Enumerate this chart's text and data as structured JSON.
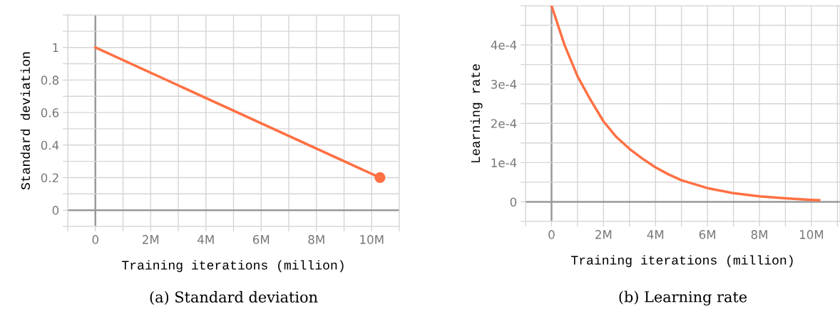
{
  "chart_data": [
    {
      "type": "line",
      "xlabel": "Training iterations (million)",
      "ylabel": "Standard deviation",
      "annotations": [
        "(a) Standard deviation"
      ],
      "series": [
        {
          "color": "#ff7043",
          "x": [
            0,
            10.3
          ],
          "values": [
            1.0,
            0.2
          ]
        },
        {
          "type": "scatter",
          "marker": "circle",
          "color": "#ff7043",
          "x": [
            10.3
          ],
          "values": [
            0.2
          ]
        }
      ],
      "xlim": [
        -1,
        11
      ],
      "xticks": [
        {
          "value": -1,
          "label": null
        },
        0,
        {
          "value": 1,
          "label": null
        },
        {
          "value": 2,
          "label": "2M"
        },
        {
          "value": 3,
          "label": null
        },
        {
          "value": 4,
          "label": "4M"
        },
        {
          "value": 5,
          "label": null
        },
        {
          "value": 6,
          "label": "6M"
        },
        {
          "value": 7,
          "label": null
        },
        {
          "value": 8,
          "label": "8M"
        },
        {
          "value": 9,
          "label": null
        },
        {
          "value": 10,
          "label": "10M"
        },
        {
          "value": 11,
          "label": null
        }
      ],
      "ylim": [
        -0.1,
        1.2
      ],
      "yticks": [
        {
          "value": -0.1,
          "label": null
        },
        0,
        {
          "value": 0.1,
          "label": null
        },
        0.2,
        {
          "value": 0.3,
          "label": null
        },
        0.4,
        {
          "value": 0.5,
          "label": null
        },
        0.6,
        {
          "value": 0.7,
          "label": null
        },
        0.8,
        {
          "value": 0.9,
          "label": null
        },
        1,
        {
          "value": 1.1,
          "label": null
        },
        {
          "value": 1.2,
          "label": null
        }
      ],
      "grid": true
    },
    {
      "type": "line",
      "xlabel": "Training iterations (million)",
      "ylabel": "Learning rate",
      "annotations": [
        "(b) Learning rate"
      ],
      "series": [
        {
          "color": "#ff7043",
          "x": [
            0,
            0.25,
            0.5,
            0.75,
            1,
            1.5,
            2,
            2.5,
            3,
            3.5,
            4,
            4.5,
            5,
            6,
            7,
            8,
            9,
            10,
            10.3
          ],
          "values": [
            0.0005,
            0.00045,
            0.0004,
            0.00036,
            0.00032,
            0.00026,
            0.000205,
            0.000165,
            0.000135,
            0.00011,
            8.8e-05,
            7e-05,
            5.5e-05,
            3.5e-05,
            2.2e-05,
            1.4e-05,
            9e-06,
            5e-06,
            4e-06
          ]
        }
      ],
      "xlim": [
        -1,
        11.1
      ],
      "xticks": [
        {
          "value": -1,
          "label": null
        },
        0,
        {
          "value": 1,
          "label": null
        },
        {
          "value": 2,
          "label": "2M"
        },
        {
          "value": 3,
          "label": null
        },
        {
          "value": 4,
          "label": "4M"
        },
        {
          "value": 5,
          "label": null
        },
        {
          "value": 6,
          "label": "6M"
        },
        {
          "value": 7,
          "label": null
        },
        {
          "value": 8,
          "label": "8M"
        },
        {
          "value": 9,
          "label": null
        },
        {
          "value": 10,
          "label": "10M"
        },
        {
          "value": 11,
          "label": null
        }
      ],
      "ylim": [
        -5e-05,
        0.0005
      ],
      "yticks": [
        {
          "value": -5e-05,
          "label": null
        },
        0,
        {
          "value": 5e-05,
          "label": null
        },
        {
          "value": 0.0001,
          "label": "1e-4"
        },
        {
          "value": 0.00015,
          "label": null
        },
        {
          "value": 0.0002,
          "label": "2e-4"
        },
        {
          "value": 0.00025,
          "label": null
        },
        {
          "value": 0.0003,
          "label": "3e-4"
        },
        {
          "value": 0.00035,
          "label": null
        },
        {
          "value": 0.0004,
          "label": "4e-4"
        },
        {
          "value": 0.00045,
          "label": null
        },
        {
          "value": 0.0005,
          "label": null
        }
      ],
      "grid": true
    }
  ]
}
